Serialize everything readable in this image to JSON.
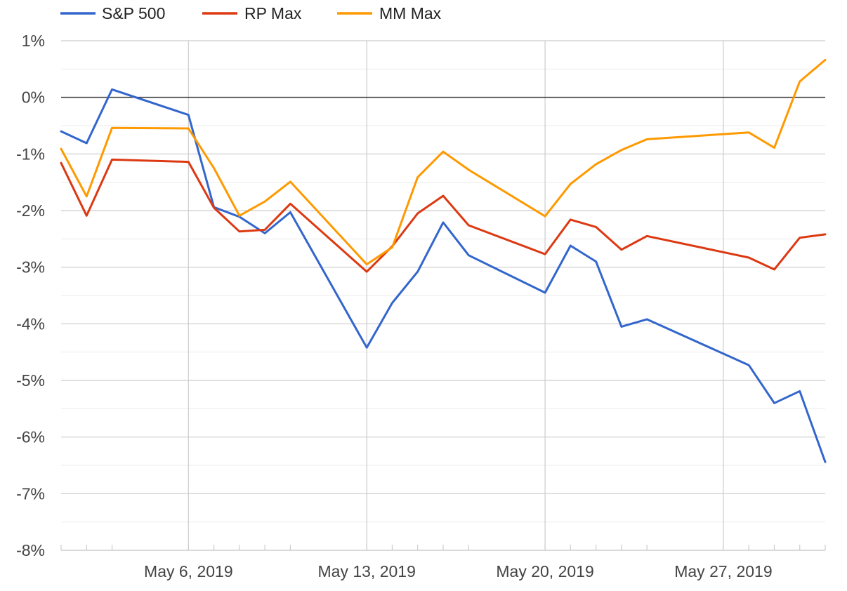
{
  "chart_data": {
    "type": "line",
    "title": "",
    "xlabel": "",
    "ylabel": "",
    "ylim": [
      -8,
      1
    ],
    "y_ticks": [
      "1%",
      "0%",
      "-1%",
      "-2%",
      "-3%",
      "-4%",
      "-5%",
      "-6%",
      "-7%",
      "-8%"
    ],
    "x_ticks": [
      {
        "date": "2019-05-06",
        "label": "May 6, 2019"
      },
      {
        "date": "2019-05-13",
        "label": "May 13, 2019"
      },
      {
        "date": "2019-05-20",
        "label": "May 20, 2019"
      },
      {
        "date": "2019-05-27",
        "label": "May 27, 2019"
      }
    ],
    "grid": true,
    "legend_position": "top-left",
    "x": [
      "2019-05-01",
      "2019-05-02",
      "2019-05-03",
      "2019-05-06",
      "2019-05-07",
      "2019-05-08",
      "2019-05-09",
      "2019-05-10",
      "2019-05-13",
      "2019-05-14",
      "2019-05-15",
      "2019-05-16",
      "2019-05-17",
      "2019-05-20",
      "2019-05-21",
      "2019-05-22",
      "2019-05-23",
      "2019-05-24",
      "2019-05-28",
      "2019-05-29",
      "2019-05-30",
      "2019-05-31"
    ],
    "series": [
      {
        "name": "S&P 500",
        "color": "#3366cc",
        "values": [
          -0.6,
          -0.81,
          0.14,
          -0.31,
          -1.94,
          -2.11,
          -2.4,
          -2.03,
          -4.42,
          -3.63,
          -3.08,
          -2.21,
          -2.79,
          -3.45,
          -2.62,
          -2.9,
          -4.05,
          -3.92,
          -4.73,
          -5.4,
          -5.19,
          -6.44
        ]
      },
      {
        "name": "RP Max",
        "color": "#dc3912",
        "values": [
          -1.16,
          -2.09,
          -1.1,
          -1.14,
          -1.95,
          -2.37,
          -2.34,
          -1.88,
          -3.08,
          -2.63,
          -2.05,
          -1.74,
          -2.26,
          -2.77,
          -2.16,
          -2.29,
          -2.69,
          -2.45,
          -2.83,
          -3.04,
          -2.48,
          -2.42
        ]
      },
      {
        "name": "MM Max",
        "color": "#ff9900",
        "values": [
          -0.91,
          -1.75,
          -0.54,
          -0.55,
          -1.25,
          -2.09,
          -1.84,
          -1.49,
          -2.95,
          -2.65,
          -1.41,
          -0.96,
          -1.28,
          -2.1,
          -1.53,
          -1.18,
          -0.93,
          -0.74,
          -0.62,
          -0.89,
          0.28,
          0.66
        ]
      }
    ]
  }
}
